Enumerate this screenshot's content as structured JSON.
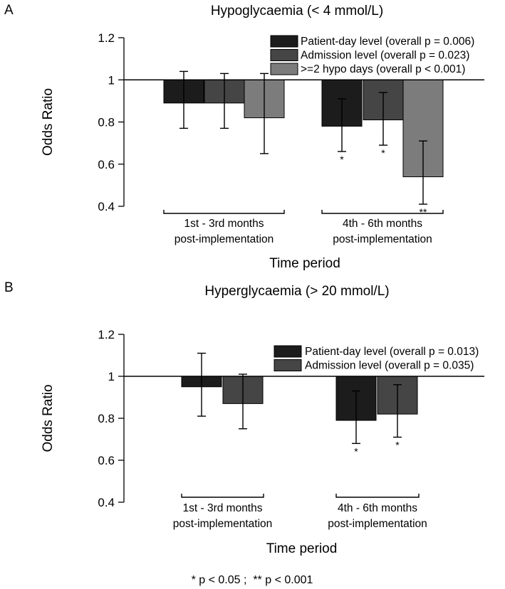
{
  "chart_data": [
    {
      "type": "bar",
      "panel": "A",
      "title": "Hypoglycaemia (< 4 mmol/L)",
      "xlabel": "Time period",
      "ylabel": "Odds Ratio",
      "ylim": [
        0.4,
        1.2
      ],
      "yticks": [
        "0.4",
        "0.6",
        "0.8",
        "1",
        "1.2"
      ],
      "reference_line": 1,
      "categories": [
        [
          "1st - 3rd months",
          "post-implementation"
        ],
        [
          "4th - 6th months",
          "post-implementation"
        ]
      ],
      "series": [
        {
          "name": "Patient-day level (overall p = 0.006)",
          "color": "#1c1c1c",
          "values": [
            0.89,
            0.78
          ],
          "ci_low": [
            0.77,
            0.66
          ],
          "ci_high": [
            1.04,
            0.91
          ],
          "sig": [
            "",
            "*"
          ]
        },
        {
          "name": "Admission level (overall p = 0.023)",
          "color": "#454545",
          "values": [
            0.89,
            0.81
          ],
          "ci_low": [
            0.77,
            0.69
          ],
          "ci_high": [
            1.03,
            0.94
          ],
          "sig": [
            "",
            "*"
          ]
        },
        {
          "name": ">=2 hypo days (overall p < 0.001)",
          "color": "#7c7c7c",
          "values": [
            0.82,
            0.54
          ],
          "ci_low": [
            0.65,
            0.41
          ],
          "ci_high": [
            1.03,
            0.71
          ],
          "sig": [
            "",
            "**"
          ]
        }
      ],
      "legend": "top-right"
    },
    {
      "type": "bar",
      "panel": "B",
      "title": "Hyperglycaemia (> 20 mmol/L)",
      "xlabel": "Time period",
      "ylabel": "Odds Ratio",
      "ylim": [
        0.4,
        1.2
      ],
      "yticks": [
        "0.4",
        "0.6",
        "0.8",
        "1",
        "1.2"
      ],
      "reference_line": 1,
      "categories": [
        [
          "1st - 3rd months",
          "post-implementation"
        ],
        [
          "4th - 6th months",
          "post-implementation"
        ]
      ],
      "series": [
        {
          "name": "Patient-day level (overall p = 0.013)",
          "color": "#1c1c1c",
          "values": [
            0.95,
            0.79
          ],
          "ci_low": [
            0.81,
            0.68
          ],
          "ci_high": [
            1.11,
            0.93
          ],
          "sig": [
            "",
            "*"
          ]
        },
        {
          "name": "Admission level (overall p = 0.035)",
          "color": "#454545",
          "values": [
            0.87,
            0.82
          ],
          "ci_low": [
            0.75,
            0.71
          ],
          "ci_high": [
            1.01,
            0.96
          ],
          "sig": [
            "",
            "*"
          ]
        }
      ],
      "legend": "top-right"
    }
  ],
  "footnote": "* p < 0.05 ;  ** p < 0.001"
}
